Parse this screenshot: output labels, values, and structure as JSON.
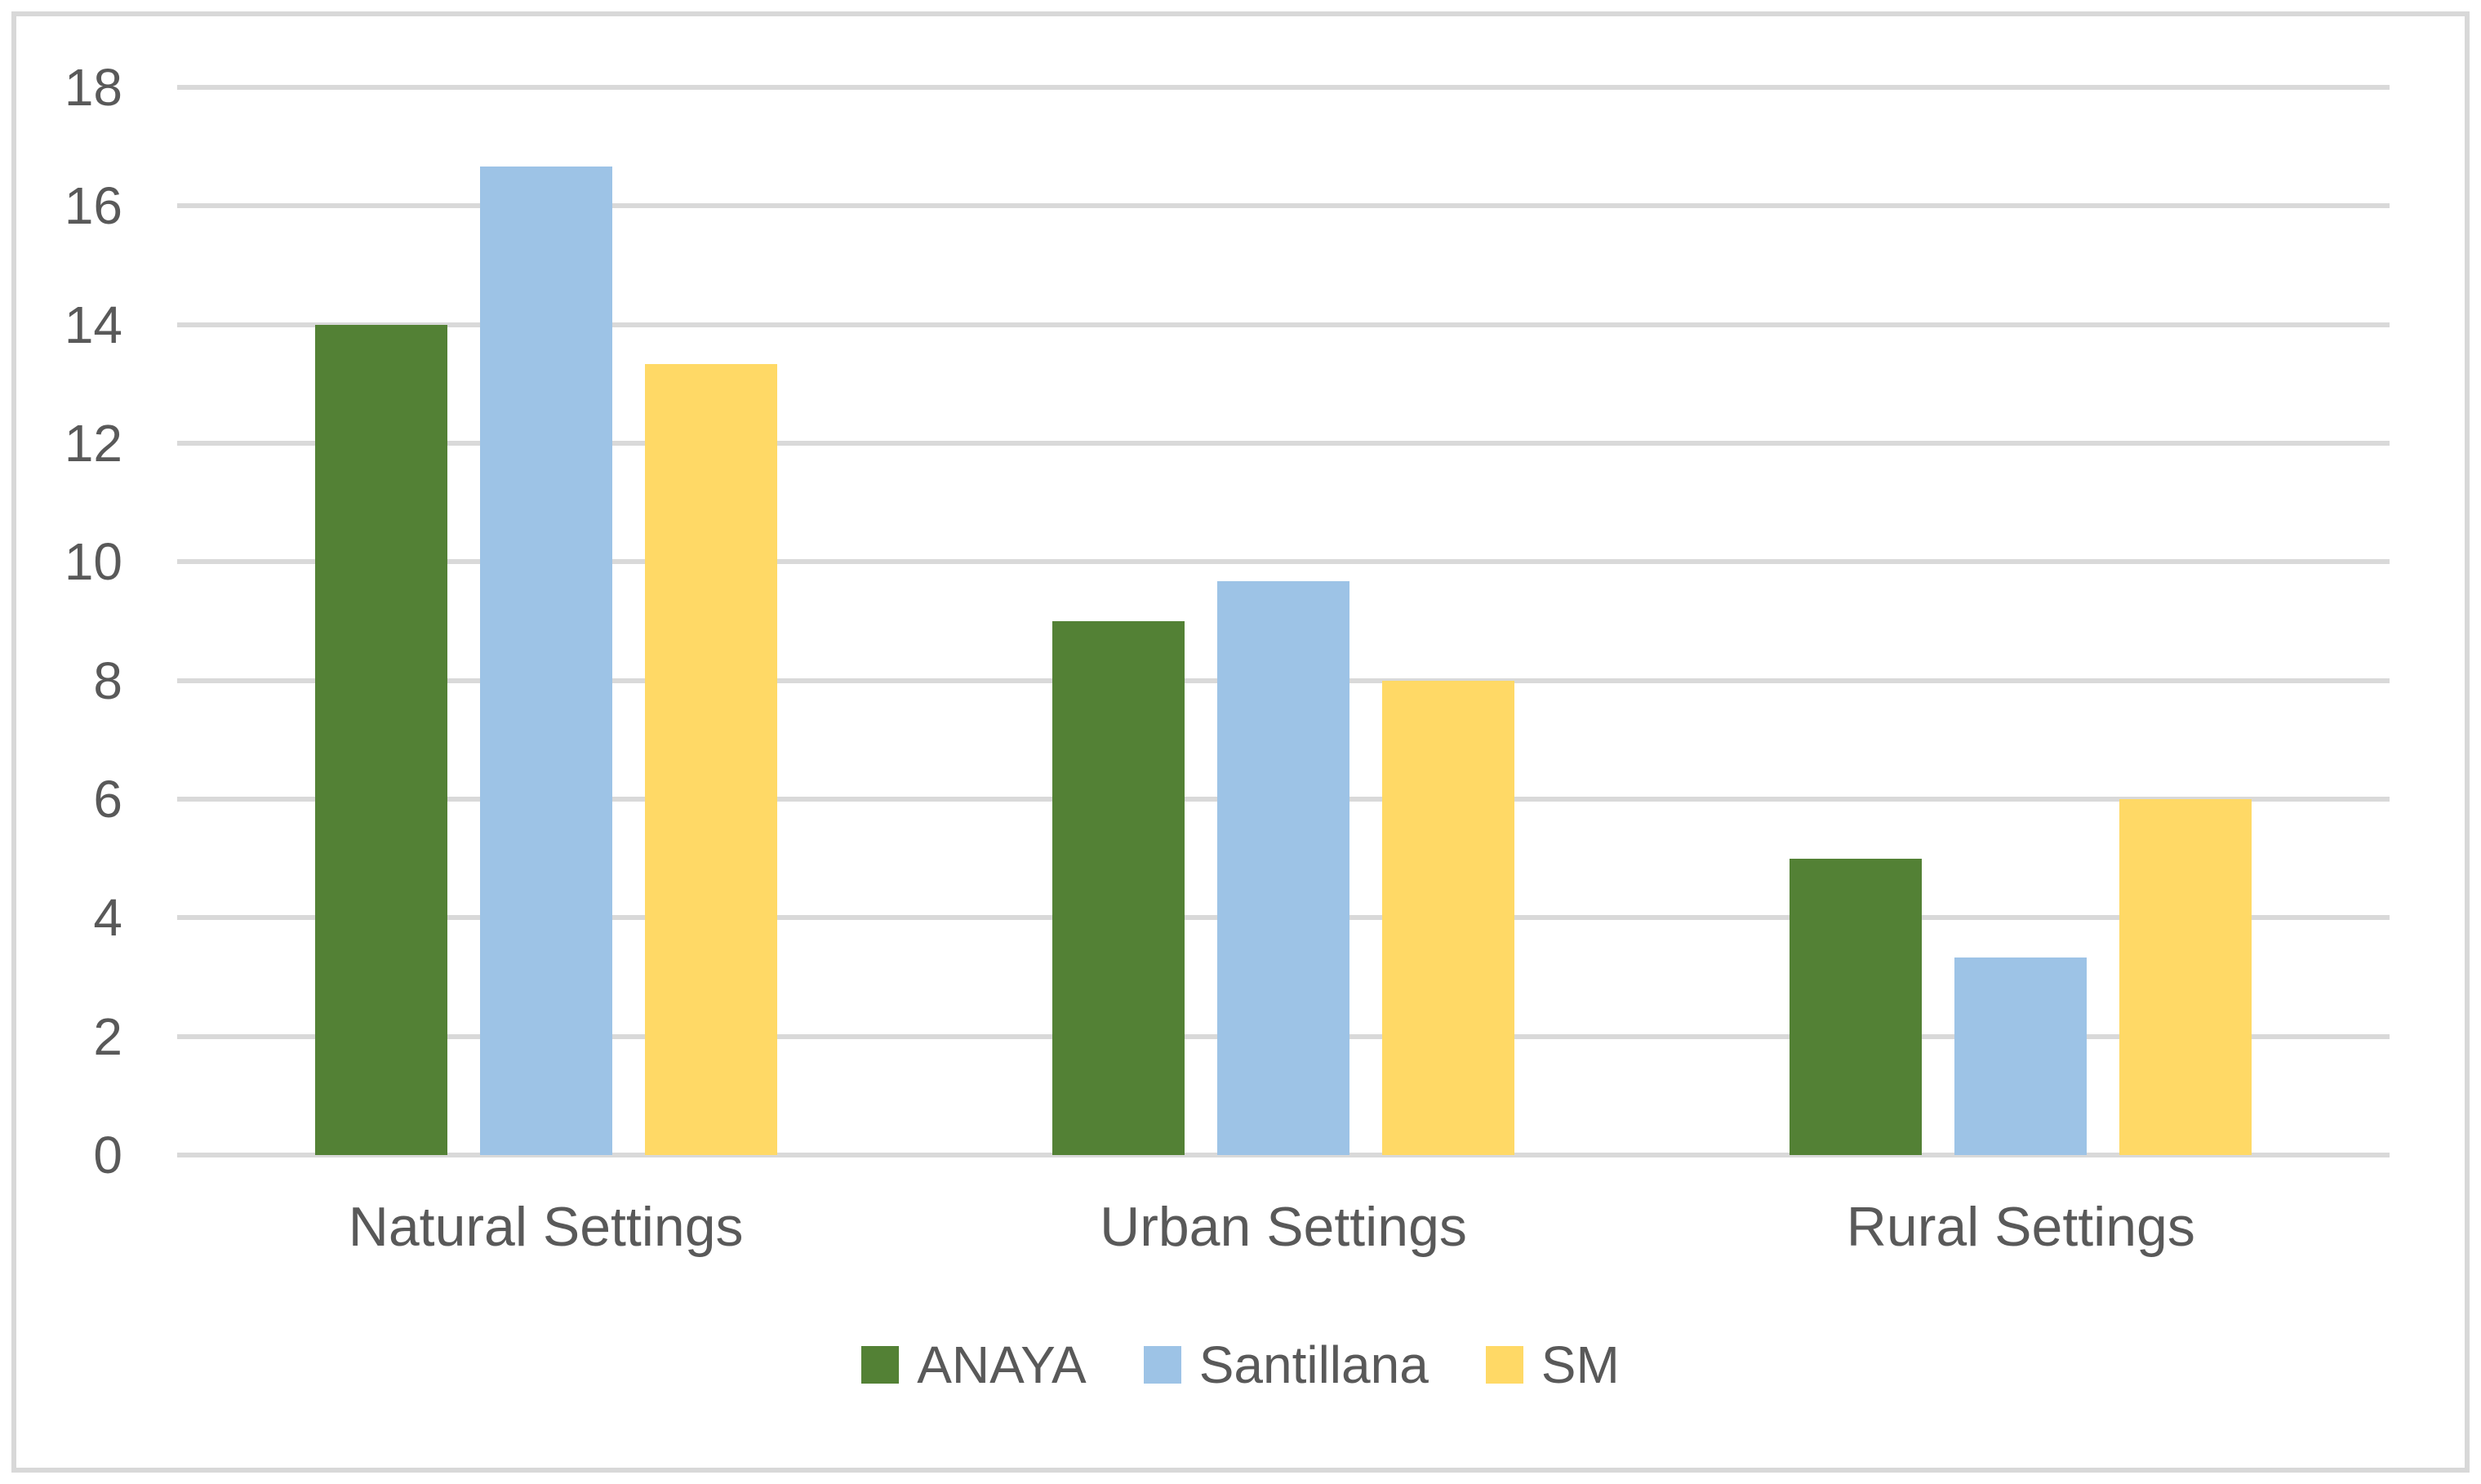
{
  "figure": {
    "background_color": "#FFFFFF",
    "border_color": "#D8D8D8",
    "text_color": "#595959",
    "gridline_color": "#D9D9D9"
  },
  "chart_data": {
    "type": "bar",
    "title": "",
    "xlabel": "",
    "ylabel": "",
    "categories": [
      "Natural Settings",
      "Urban Settings",
      "Rural Settings"
    ],
    "series": [
      {
        "name": "ANAYA",
        "color": "#538135",
        "values": [
          14,
          9,
          5
        ]
      },
      {
        "name": "Santillana",
        "color": "#9DC3E6",
        "values": [
          16.67,
          9.67,
          3.33
        ]
      },
      {
        "name": "SM",
        "color": "#FFD966",
        "values": [
          13.33,
          8,
          6
        ]
      }
    ],
    "ylim": [
      0,
      18
    ],
    "yticks": [
      0,
      2,
      4,
      6,
      8,
      10,
      12,
      14,
      16,
      18
    ],
    "grid": true,
    "legend_position": "bottom-center"
  }
}
